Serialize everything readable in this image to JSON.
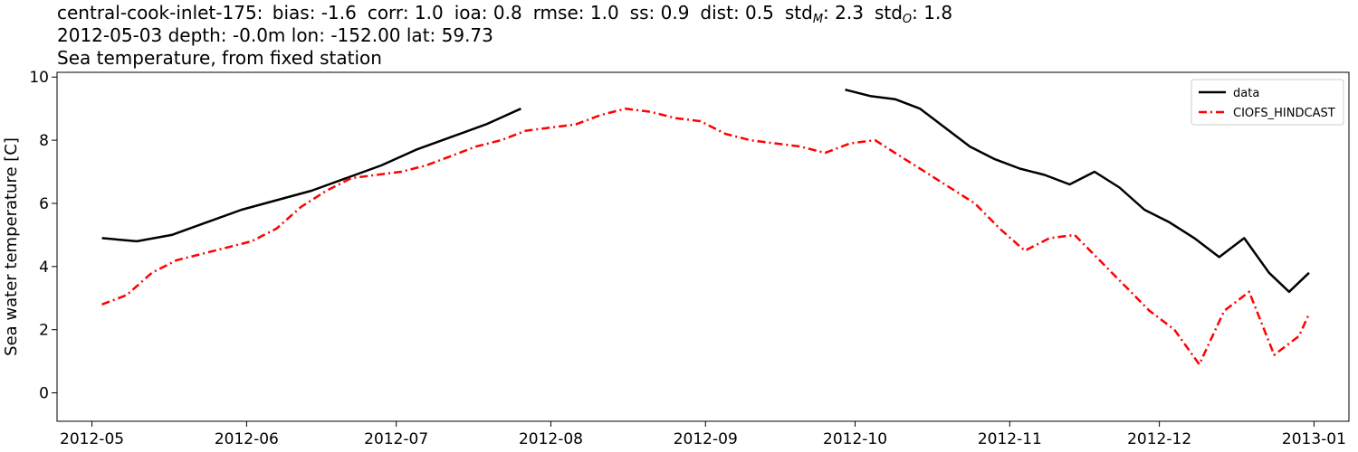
{
  "header": {
    "station": "central-cook-inlet-175:",
    "stats": [
      {
        "label": "bias",
        "sub": "",
        "value": "-1.6"
      },
      {
        "label": "corr",
        "sub": "",
        "value": "1.0"
      },
      {
        "label": "ioa",
        "sub": "",
        "value": "0.8"
      },
      {
        "label": "rmse",
        "sub": "",
        "value": "1.0"
      },
      {
        "label": "ss",
        "sub": "",
        "value": "0.9"
      },
      {
        "label": "dist",
        "sub": "",
        "value": "0.5"
      },
      {
        "label": "std",
        "sub": "M",
        "value": "2.3"
      },
      {
        "label": "std",
        "sub": "O",
        "value": "1.8"
      }
    ],
    "line2": "2012-05-03 depth: -0.0m lon: -152.00 lat: 59.73",
    "line3": "Sea temperature, from fixed station"
  },
  "chart_data": {
    "type": "line",
    "title": "Sea temperature, from fixed station",
    "xlabel": "",
    "ylabel": "Sea water temperature [C]",
    "x_type": "date",
    "xlim": [
      "2012-04-24",
      "2013-01-08"
    ],
    "ylim": [
      -0.9,
      10.15
    ],
    "xticks": [
      "2012-05",
      "2012-06",
      "2012-07",
      "2012-08",
      "2012-09",
      "2012-10",
      "2012-11",
      "2012-12",
      "2013-01"
    ],
    "yticks": [
      0,
      2,
      4,
      6,
      8,
      10
    ],
    "grid": false,
    "legend_position": "top-right",
    "series": [
      {
        "name": "data",
        "color": "#000000",
        "style": "solid",
        "x": [
          "2012-05-03",
          "2012-05-10",
          "2012-05-17",
          "2012-05-24",
          "2012-05-31",
          "2012-06-07",
          "2012-06-14",
          "2012-06-21",
          "2012-06-28",
          "2012-07-05",
          "2012-07-12",
          "2012-07-19",
          "2012-07-26",
          null,
          "2012-09-29",
          "2012-10-04",
          "2012-10-09",
          "2012-10-14",
          "2012-10-19",
          "2012-10-24",
          "2012-10-29",
          "2012-11-03",
          "2012-11-08",
          "2012-11-13",
          "2012-11-18",
          "2012-11-23",
          "2012-11-28",
          "2012-12-03",
          "2012-12-08",
          "2012-12-13",
          "2012-12-18",
          "2012-12-23",
          "2012-12-27",
          "2012-12-31"
        ],
        "values": [
          4.9,
          4.8,
          5.0,
          5.4,
          5.8,
          6.1,
          6.4,
          6.8,
          7.2,
          7.7,
          8.1,
          8.5,
          9.0,
          null,
          9.6,
          9.4,
          9.3,
          9.0,
          8.4,
          7.8,
          7.4,
          7.1,
          6.9,
          6.6,
          7.0,
          6.5,
          5.8,
          5.4,
          4.9,
          4.3,
          4.9,
          3.8,
          3.2,
          3.8
        ]
      },
      {
        "name": "CIOFS_HINDCAST",
        "color": "#ff0000",
        "style": "dashdot",
        "x": [
          "2012-05-03",
          "2012-05-08",
          "2012-05-13",
          "2012-05-18",
          "2012-05-23",
          "2012-05-28",
          "2012-06-02",
          "2012-06-07",
          "2012-06-12",
          "2012-06-17",
          "2012-06-22",
          "2012-06-27",
          "2012-07-02",
          "2012-07-07",
          "2012-07-12",
          "2012-07-17",
          "2012-07-22",
          "2012-07-27",
          "2012-08-01",
          "2012-08-06",
          "2012-08-11",
          "2012-08-16",
          "2012-08-21",
          "2012-08-26",
          "2012-08-31",
          "2012-09-05",
          "2012-09-10",
          "2012-09-15",
          "2012-09-20",
          "2012-09-25",
          "2012-09-30",
          "2012-10-05",
          "2012-10-10",
          "2012-10-15",
          "2012-10-20",
          "2012-10-25",
          "2012-10-30",
          "2012-11-04",
          "2012-11-09",
          "2012-11-14",
          "2012-11-19",
          "2012-11-24",
          "2012-11-29",
          "2012-12-04",
          "2012-12-09",
          "2012-12-14",
          "2012-12-19",
          "2012-12-24",
          "2012-12-29",
          "2012-12-31"
        ],
        "values": [
          2.8,
          3.1,
          3.8,
          4.2,
          4.4,
          4.6,
          4.8,
          5.2,
          5.9,
          6.4,
          6.8,
          6.9,
          7.0,
          7.2,
          7.5,
          7.8,
          8.0,
          8.3,
          8.4,
          8.5,
          8.8,
          9.0,
          8.9,
          8.7,
          8.6,
          8.2,
          8.0,
          7.9,
          7.8,
          7.6,
          7.9,
          8.0,
          7.5,
          7.0,
          6.5,
          6.0,
          5.2,
          4.5,
          4.9,
          5.0,
          4.2,
          3.4,
          2.6,
          2.0,
          0.9,
          2.6,
          3.2,
          1.2,
          1.8,
          2.5
        ]
      }
    ]
  }
}
